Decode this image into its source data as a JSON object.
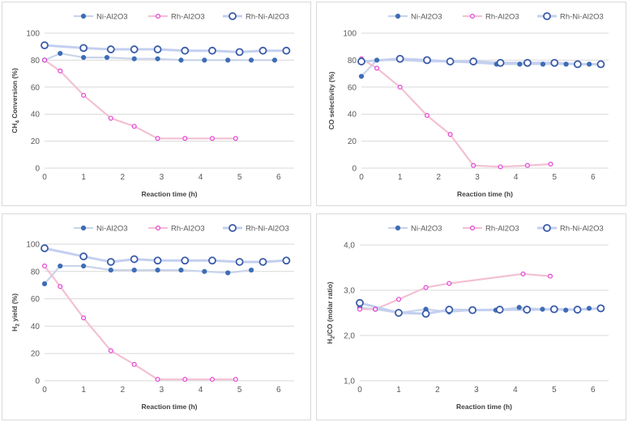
{
  "colors": {
    "ni_line": "#c9d4ea",
    "ni_marker": "#3e6db5",
    "rh_line": "#f3c0d3",
    "rh_marker": "#e63fd4",
    "rhni_line": "#c3cff0",
    "rhni_marker": "#3a5ba8",
    "grid": "#d9d9d9"
  },
  "chart_data": [
    {
      "type": "line",
      "ylabel_main": "CH",
      "ylabel_sub": "4",
      "ylabel_rest": " Conversion (%)",
      "xlabel": "Reaction time (h)",
      "ylim": [
        0,
        100
      ],
      "yticks": [
        "0",
        "20",
        "40",
        "60",
        "80",
        "100"
      ],
      "ytick_values": [
        0,
        20,
        40,
        60,
        80,
        100
      ],
      "xlim": [
        0,
        6.4
      ],
      "xticks": [
        "0",
        "1",
        "2",
        "3",
        "4",
        "5",
        "6"
      ],
      "series": [
        {
          "name": "Ni-Al2O3",
          "marker": "dot",
          "x": [
            0,
            0.4,
            1.0,
            1.6,
            2.3,
            2.9,
            3.5,
            4.1,
            4.7,
            5.3,
            5.9
          ],
          "y": [
            80,
            85,
            82,
            82,
            81,
            81,
            80,
            80,
            80,
            80,
            80
          ]
        },
        {
          "name": "Rh-Al2O3",
          "marker": "small",
          "x": [
            0,
            0.4,
            1.0,
            1.7,
            2.3,
            2.9,
            3.6,
            4.3,
            4.9
          ],
          "y": [
            80,
            72,
            54,
            37,
            31,
            22,
            22,
            22,
            22
          ]
        },
        {
          "name": "Rh-Ni-Al2O3",
          "marker": "ring",
          "x": [
            0,
            1.0,
            1.7,
            2.3,
            2.9,
            3.6,
            4.3,
            5.0,
            5.6,
            6.2
          ],
          "y": [
            91,
            89,
            88,
            88,
            88,
            87,
            87,
            86,
            87,
            87
          ]
        }
      ]
    },
    {
      "type": "line",
      "ylabel_main": "CO selectivity (%)",
      "ylabel_sub": "",
      "ylabel_rest": "",
      "xlabel": "Reaction time (h)",
      "ylim": [
        0,
        100
      ],
      "yticks": [
        "0",
        "20",
        "40",
        "60",
        "80",
        "100"
      ],
      "ytick_values": [
        0,
        20,
        40,
        60,
        80,
        100
      ],
      "xlim": [
        0,
        6.4
      ],
      "xticks": [
        "0",
        "1",
        "2",
        "3",
        "4",
        "5",
        "6"
      ],
      "series": [
        {
          "name": "Ni-Al2O3",
          "marker": "dot",
          "x": [
            0,
            0.4,
            1.0,
            1.7,
            2.3,
            2.9,
            3.5,
            4.1,
            4.7,
            5.3,
            5.9
          ],
          "y": [
            68,
            80,
            80,
            79,
            79,
            78,
            77,
            77,
            77,
            77,
            77
          ]
        },
        {
          "name": "Rh-Al2O3",
          "marker": "small",
          "x": [
            0,
            0.4,
            1.0,
            1.7,
            2.3,
            2.9,
            3.6,
            4.3,
            4.9
          ],
          "y": [
            81,
            74,
            60,
            39,
            25,
            2,
            1,
            2,
            3
          ]
        },
        {
          "name": "Rh-Ni-Al2O3",
          "marker": "ring",
          "x": [
            0,
            1.0,
            1.7,
            2.3,
            2.9,
            3.6,
            4.3,
            5.0,
            5.6,
            6.2
          ],
          "y": [
            79,
            81,
            80,
            79,
            79,
            78,
            78,
            78,
            77,
            77
          ]
        }
      ]
    },
    {
      "type": "line",
      "ylabel_main": "H",
      "ylabel_sub": "2",
      "ylabel_rest": " yield (%)",
      "xlabel": "Reaction time (h)",
      "ylim": [
        0,
        100
      ],
      "yticks": [
        "0",
        "20",
        "40",
        "60",
        "80",
        "100"
      ],
      "ytick_values": [
        0,
        20,
        40,
        60,
        80,
        100
      ],
      "xlim": [
        0,
        6.4
      ],
      "xticks": [
        "0",
        "1",
        "2",
        "3",
        "4",
        "5",
        "6"
      ],
      "series": [
        {
          "name": "Ni-Al2O3",
          "marker": "dot",
          "x": [
            0,
            0.4,
            1.0,
            1.7,
            2.3,
            2.9,
            3.5,
            4.1,
            4.7,
            5.3
          ],
          "y": [
            71,
            84,
            84,
            81,
            81,
            81,
            81,
            80,
            79,
            81
          ]
        },
        {
          "name": "Rh-Al2O3",
          "marker": "small",
          "x": [
            0,
            0.4,
            1.0,
            1.7,
            2.3,
            2.9,
            3.6,
            4.3,
            4.9
          ],
          "y": [
            84,
            69,
            46,
            22,
            12,
            1,
            1,
            1,
            1
          ]
        },
        {
          "name": "Rh-Ni-Al2O3",
          "marker": "ring",
          "x": [
            0,
            1.0,
            1.7,
            2.3,
            2.9,
            3.6,
            4.3,
            5.0,
            5.6,
            6.2
          ],
          "y": [
            97,
            91,
            87,
            89,
            88,
            88,
            88,
            87,
            87,
            88
          ]
        }
      ]
    },
    {
      "type": "line",
      "ylabel_main": "H",
      "ylabel_sub": "2",
      "ylabel_rest": "/CO (molar ratio)",
      "xlabel": "Reaction time (h)",
      "ylim": [
        1.0,
        4.0
      ],
      "yticks": [
        "1,0",
        "2,0",
        "3,0",
        "4,0"
      ],
      "ytick_values": [
        1.0,
        2.0,
        3.0,
        4.0
      ],
      "xlim": [
        0,
        6.4
      ],
      "xticks": [
        "0",
        "1",
        "2",
        "3",
        "4",
        "5",
        "6"
      ],
      "series": [
        {
          "name": "Ni-Al2O3",
          "marker": "dot",
          "x": [
            0,
            0.4,
            1.0,
            1.7,
            2.3,
            2.9,
            3.5,
            4.1,
            4.7,
            5.3,
            5.9
          ],
          "y": [
            2.62,
            2.58,
            2.5,
            2.58,
            2.52,
            2.56,
            2.56,
            2.62,
            2.58,
            2.56,
            2.6
          ]
        },
        {
          "name": "Rh-Al2O3",
          "marker": "small",
          "x": [
            0,
            0.4,
            1.0,
            1.7,
            2.3,
            4.2,
            4.9
          ],
          "y": [
            2.58,
            2.58,
            2.8,
            3.06,
            3.15,
            3.36,
            3.31
          ]
        },
        {
          "name": "Rh-Ni-Al2O3",
          "marker": "ring",
          "x": [
            0,
            1.0,
            1.7,
            2.3,
            2.9,
            3.6,
            4.3,
            5.0,
            5.6,
            6.2
          ],
          "y": [
            2.72,
            2.5,
            2.48,
            2.57,
            2.56,
            2.57,
            2.57,
            2.58,
            2.57,
            2.6
          ]
        }
      ]
    }
  ]
}
